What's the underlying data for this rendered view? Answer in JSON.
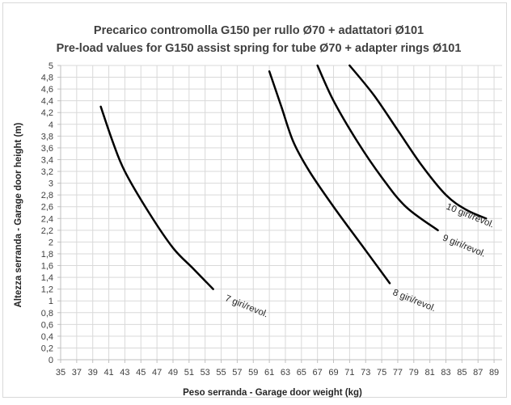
{
  "chart_data": {
    "type": "line",
    "title": "Precarico contromolla G150 per rullo Ø70 + adattatori Ø101",
    "subtitle": "Pre-load values for G150 assist spring for tube Ø70 + adapter rings Ø101",
    "xlabel": "Peso serranda - Garage door weight (kg)",
    "ylabel": "Altezza serranda - Garage door height (m)",
    "xlim": [
      35,
      90
    ],
    "ylim": [
      0,
      5
    ],
    "x_ticks": [
      "35",
      "37",
      "39",
      "41",
      "43",
      "45",
      "47",
      "49",
      "51",
      "53",
      "55",
      "57",
      "59",
      "61",
      "63",
      "65",
      "67",
      "69",
      "71",
      "73",
      "75",
      "77",
      "79",
      "81",
      "83",
      "85",
      "87",
      "89"
    ],
    "y_ticks": [
      "0",
      "0,2",
      "0,4",
      "0,6",
      "0,8",
      "1",
      "1,2",
      "1,4",
      "1,6",
      "1,8",
      "2",
      "2,2",
      "2,4",
      "2,6",
      "2,8",
      "3",
      "3,2",
      "3,4",
      "3,6",
      "3,8",
      "4",
      "4,2",
      "4,4",
      "4,6",
      "4,8",
      "5"
    ],
    "grid": true,
    "legend": "none",
    "series": [
      {
        "name": "7 giri/revol.",
        "points": [
          [
            40,
            4.3
          ],
          [
            41.5,
            3.7
          ],
          [
            43,
            3.2
          ],
          [
            46,
            2.5
          ],
          [
            49,
            1.9
          ],
          [
            51.5,
            1.55
          ],
          [
            54,
            1.2
          ]
        ]
      },
      {
        "name": "8 giri/revol.",
        "points": [
          [
            61,
            4.9
          ],
          [
            62.5,
            4.3
          ],
          [
            64,
            3.7
          ],
          [
            66,
            3.2
          ],
          [
            69,
            2.6
          ],
          [
            72.5,
            1.95
          ],
          [
            76,
            1.3
          ]
        ]
      },
      {
        "name": "9 giri/revol.",
        "points": [
          [
            67,
            5.0
          ],
          [
            69,
            4.4
          ],
          [
            72,
            3.7
          ],
          [
            75,
            3.1
          ],
          [
            78,
            2.6
          ],
          [
            82,
            2.2
          ]
        ]
      },
      {
        "name": "10 giri/revol.",
        "points": [
          [
            71,
            5.0
          ],
          [
            74,
            4.5
          ],
          [
            77,
            3.9
          ],
          [
            80,
            3.3
          ],
          [
            83,
            2.8
          ],
          [
            85.5,
            2.55
          ],
          [
            88,
            2.4
          ]
        ]
      }
    ],
    "line_color": "#000000"
  }
}
